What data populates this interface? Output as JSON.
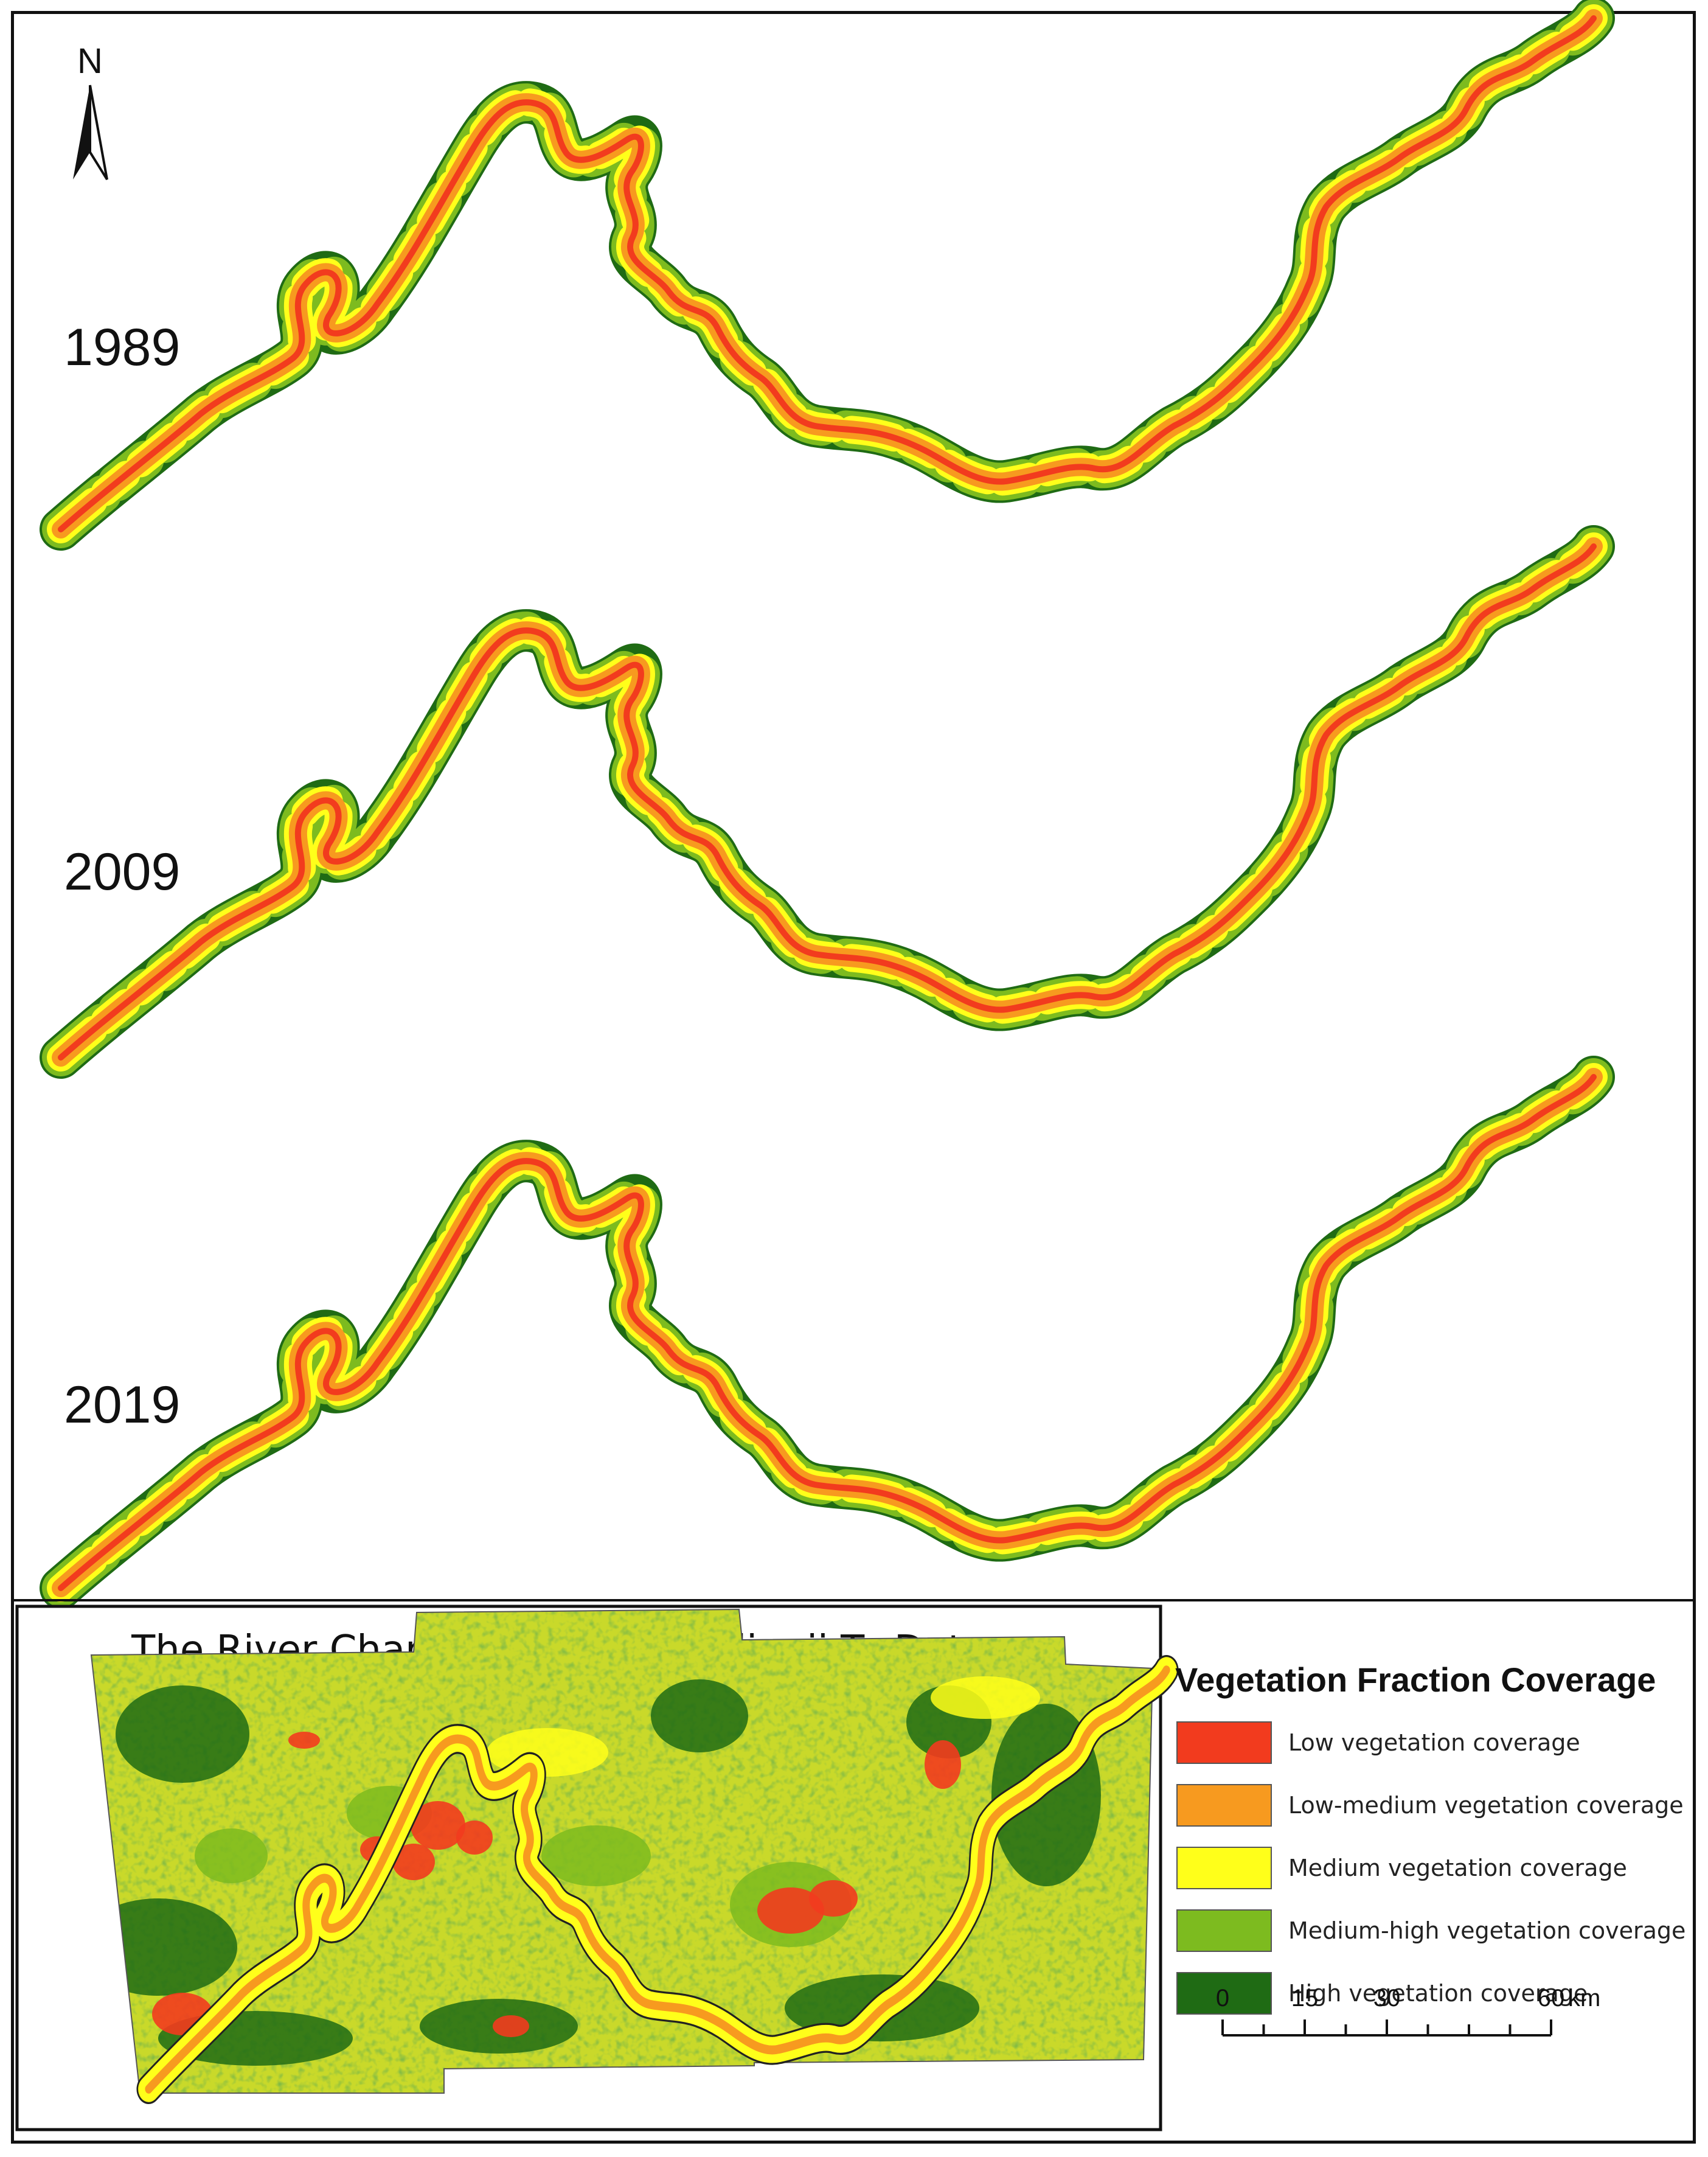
{
  "map": {
    "north_arrow": {
      "letter": "N"
    },
    "panels": [
      {
        "year": "1989"
      },
      {
        "year": "2009"
      },
      {
        "year": "2019"
      }
    ],
    "inset": {
      "title": "The River Channel From Chenglingji To Datong"
    },
    "legend": {
      "title": "Vegetation Fraction Coverage",
      "items": [
        {
          "label": "Low vegetation coverage",
          "color": "#f23b1e"
        },
        {
          "label": "Low-medium vegetation coverage",
          "color": "#f79a1f"
        },
        {
          "label": "Medium vegetation coverage",
          "color": "#ffff1a"
        },
        {
          "label": "Medium-high vegetation coverage",
          "color": "#7dbb1f"
        },
        {
          "label": "High vegetation coverage",
          "color": "#1f6b14"
        }
      ]
    },
    "scale_bar": {
      "ticks": [
        "0",
        "15",
        "30",
        "60"
      ],
      "unit": "km"
    }
  }
}
